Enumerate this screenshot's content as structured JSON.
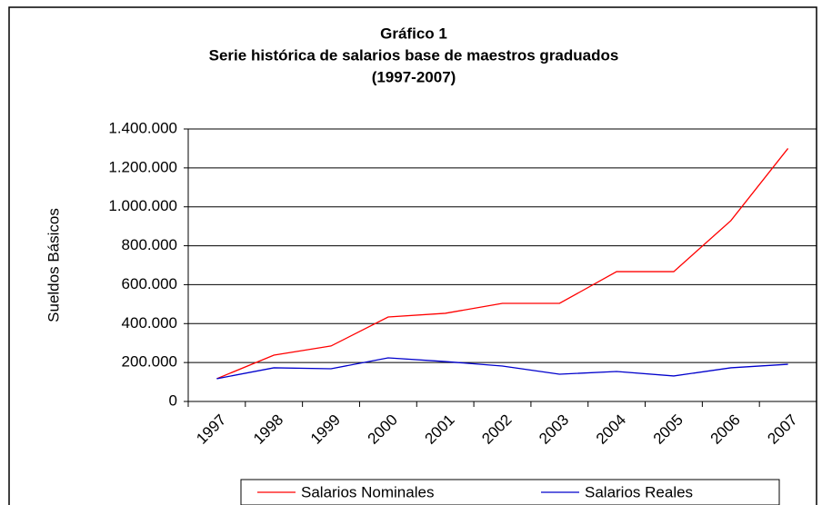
{
  "chart_data": {
    "type": "line",
    "title": [
      "Gráfico 1",
      "Serie histórica de salarios base de maestros graduados",
      "(1997-2007)"
    ],
    "y_label": "Sueldos Básicos",
    "categories": [
      "1997",
      "1998",
      "1999",
      "2000",
      "2001",
      "2002",
      "2003",
      "2004",
      "2005",
      "2006",
      "2007"
    ],
    "series": [
      {
        "name": "Salarios Nominales",
        "color": "#ff0000",
        "values": [
          117000,
          238000,
          285000,
          434000,
          453000,
          504000,
          504000,
          667000,
          667000,
          929000,
          1300000
        ]
      },
      {
        "name": "Salarios Reales",
        "color": "#0000cc",
        "values": [
          117000,
          173000,
          168000,
          224000,
          205000,
          182000,
          140000,
          154000,
          131000,
          173000,
          191000
        ]
      }
    ],
    "ylim": [
      0,
      1400000
    ],
    "yticks": [
      0,
      {
        "value": 200000,
        "label": "200.000"
      },
      {
        "value": 400000,
        "label": "400.000"
      },
      {
        "value": 600000,
        "label": "600.000"
      },
      {
        "value": 800000,
        "label": "800.000"
      },
      {
        "value": 1000000,
        "label": "1.000.000"
      },
      {
        "value": 1200000,
        "label": "1.200.000"
      },
      {
        "value": 1400000,
        "label": "1.400.000"
      }
    ],
    "grid": true,
    "legend": "bottom"
  }
}
